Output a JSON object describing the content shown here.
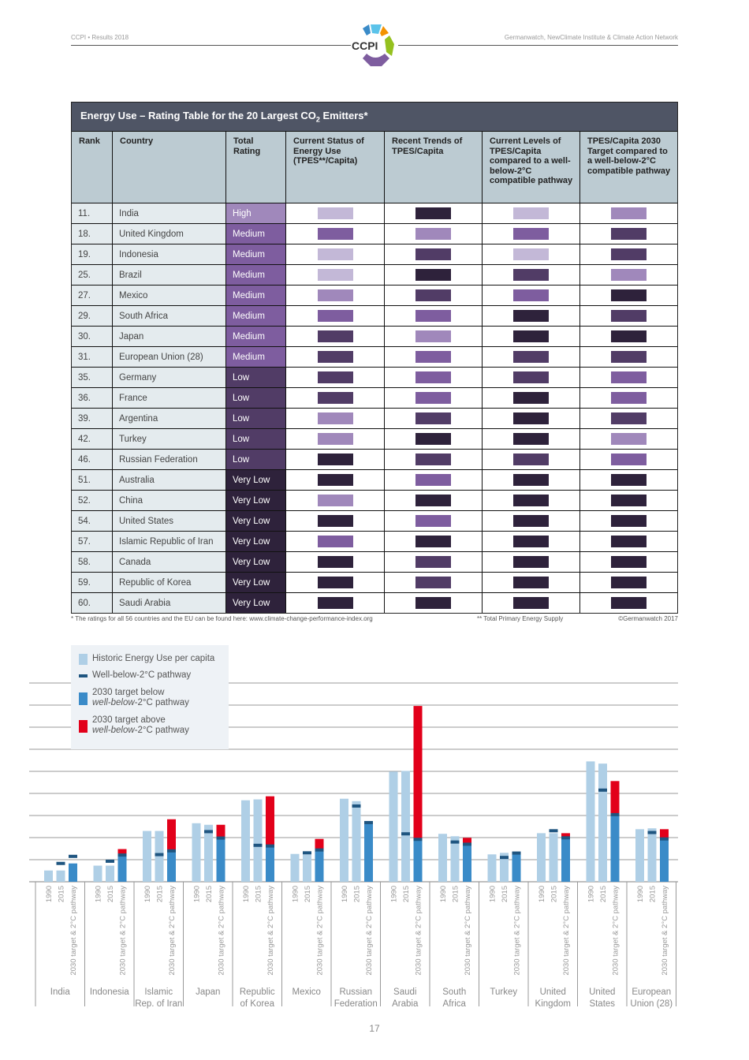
{
  "header": {
    "left": "CCPI • Results 2018",
    "right": "Germanwatch, NewClimate Institute & Climate Action Network",
    "logo_text": "CCPI"
  },
  "table": {
    "title": "Energy Use – Rating Table for the 20 Largest CO",
    "title_sub": "2",
    "title_end": " Emitters*",
    "columns": [
      "Rank",
      "Country",
      "Total Rating",
      "Current Status of Energy Use (TPES**/Capita)",
      "Recent Trends of TPES/Capita",
      "Current Levels of TPES/Capita compared to a well-below-2°C compatible pathway",
      "TPES/Capita 2030 Target compared to a well-below-2°C compatible pathway"
    ],
    "level_colors": {
      "Very High": "#c3b8d7",
      "High": "#a088bb",
      "Medium": "#7e5d9f",
      "Low": "#513c66",
      "Very Low": "#2e223b"
    },
    "rows": [
      {
        "rank": "11.",
        "country": "India",
        "rating": "High",
        "levels": [
          "Very High",
          "Very Low",
          "Very High",
          "High"
        ]
      },
      {
        "rank": "18.",
        "country": "United Kingdom",
        "rating": "Medium",
        "levels": [
          "Medium",
          "High",
          "Medium",
          "Low"
        ]
      },
      {
        "rank": "19.",
        "country": "Indonesia",
        "rating": "Medium",
        "levels": [
          "Very High",
          "Low",
          "Very High",
          "Low"
        ]
      },
      {
        "rank": "25.",
        "country": "Brazil",
        "rating": "Medium",
        "levels": [
          "Very High",
          "Very Low",
          "Low",
          "High"
        ]
      },
      {
        "rank": "27.",
        "country": "Mexico",
        "rating": "Medium",
        "levels": [
          "High",
          "Low",
          "Medium",
          "Very Low"
        ]
      },
      {
        "rank": "29.",
        "country": "South Africa",
        "rating": "Medium",
        "levels": [
          "Medium",
          "Medium",
          "Very Low",
          "Low"
        ]
      },
      {
        "rank": "30.",
        "country": "Japan",
        "rating": "Medium",
        "levels": [
          "Low",
          "High",
          "Very Low",
          "Very Low"
        ]
      },
      {
        "rank": "31.",
        "country": "European Union (28)",
        "rating": "Medium",
        "levels": [
          "Low",
          "Medium",
          "Low",
          "Low"
        ]
      },
      {
        "rank": "35.",
        "country": "Germany",
        "rating": "Low",
        "levels": [
          "Low",
          "Medium",
          "Low",
          "Medium"
        ]
      },
      {
        "rank": "36.",
        "country": "France",
        "rating": "Low",
        "levels": [
          "Low",
          "Medium",
          "Very Low",
          "Medium"
        ]
      },
      {
        "rank": "39.",
        "country": "Argentina",
        "rating": "Low",
        "levels": [
          "High",
          "Low",
          "Very Low",
          "Low"
        ]
      },
      {
        "rank": "42.",
        "country": "Turkey",
        "rating": "Low",
        "levels": [
          "High",
          "Very Low",
          "Very Low",
          "High"
        ]
      },
      {
        "rank": "46.",
        "country": "Russian Federation",
        "rating": "Low",
        "levels": [
          "Very Low",
          "Low",
          "Low",
          "Medium"
        ]
      },
      {
        "rank": "51.",
        "country": "Australia",
        "rating": "Very Low",
        "levels": [
          "Very Low",
          "Medium",
          "Very Low",
          "Very Low"
        ]
      },
      {
        "rank": "52.",
        "country": "China",
        "rating": "Very Low",
        "levels": [
          "High",
          "Very Low",
          "Very Low",
          "Very Low"
        ]
      },
      {
        "rank": "54.",
        "country": "United States",
        "rating": "Very Low",
        "levels": [
          "Very Low",
          "Medium",
          "Very Low",
          "Very Low"
        ]
      },
      {
        "rank": "57.",
        "country": "Islamic Republic of Iran",
        "rating": "Very Low",
        "levels": [
          "Medium",
          "Very Low",
          "Very Low",
          "Very Low"
        ]
      },
      {
        "rank": "58.",
        "country": "Canada",
        "rating": "Very Low",
        "levels": [
          "Very Low",
          "Low",
          "Very Low",
          "Very Low"
        ]
      },
      {
        "rank": "59.",
        "country": "Republic of Korea",
        "rating": "Very Low",
        "levels": [
          "Very Low",
          "Low",
          "Very Low",
          "Very Low"
        ]
      },
      {
        "rank": "60.",
        "country": "Saudi Arabia",
        "rating": "Very Low",
        "levels": [
          "Very Low",
          "Very Low",
          "Very Low",
          "Very Low"
        ]
      }
    ],
    "footnote1": "* The ratings for all 56 countries and the EU can be found here: www.climate-change-performance-index.org",
    "footnote2": "** Total Primary Energy Supply",
    "copyright": "©Germanwatch 2017"
  },
  "chart_data": {
    "type": "bar",
    "legend": [
      {
        "label": "Historic Energy Use per capita",
        "color": "#afcfe6"
      },
      {
        "label": "Well-below-2°C pathway",
        "color": "#1f5580"
      },
      {
        "label": "2030 target below",
        "label_em": "well-below",
        "label_end": "-2°C pathway",
        "color": "#3a8bc8"
      },
      {
        "label": "2030 target above",
        "label_em": "well-below",
        "label_end": "-2°C pathway",
        "color": "#e2001a"
      }
    ],
    "bar_labels": [
      "1990",
      "2015",
      "2030 target & 2°C pathway"
    ],
    "grid": true,
    "ylim": [
      0,
      9
    ],
    "countries": [
      {
        "name": "India",
        "y1990": 0.51,
        "y2015": 0.51,
        "pathway2015": 0.83,
        "target2030": 0.83,
        "pathway2030": 1.15
      },
      {
        "name": "Indonesia",
        "y1990": 0.73,
        "y2015": 0.73,
        "pathway2015": 0.93,
        "target2030": 1.48,
        "pathway2030": 1.21
      },
      {
        "name": "Islamic Rep. of Iran",
        "y1990": 2.3,
        "y2015": 2.3,
        "pathway2015": 1.23,
        "target2030": 2.83,
        "pathway2030": 1.4
      },
      {
        "name": "Japan",
        "y1990": 2.65,
        "y2015": 2.58,
        "pathway2015": 2.27,
        "target2030": 2.58,
        "pathway2030": 1.98
      },
      {
        "name": "Republic of Korea",
        "y1990": 3.69,
        "y2015": 3.73,
        "pathway2015": 1.65,
        "target2030": 3.87,
        "pathway2030": 1.62
      },
      {
        "name": "Mexico",
        "y1990": 1.26,
        "y2015": 1.23,
        "pathway2015": 1.31,
        "target2030": 1.94,
        "pathway2030": 1.44
      },
      {
        "name": "Russian Federation",
        "y1990": 3.76,
        "y2015": 3.65,
        "pathway2015": 3.43,
        "target2030": 2.62,
        "pathway2030": 2.68
      },
      {
        "name": "Saudi Arabia",
        "y1990": 4.99,
        "y2015": 5.02,
        "pathway2015": 2.17,
        "target2030": 7.96,
        "pathway2030": 1.92
      },
      {
        "name": "South Africa",
        "y1990": 2.17,
        "y2015": 2.06,
        "pathway2015": 1.8,
        "target2030": 1.99,
        "pathway2030": 1.7
      },
      {
        "name": "Turkey",
        "y1990": 1.24,
        "y2015": 1.31,
        "pathway2015": 1.1,
        "target2030": 1.24,
        "pathway2030": 1.3
      },
      {
        "name": "United Kingdom",
        "y1990": 2.2,
        "y2015": 2.2,
        "pathway2015": 2.31,
        "target2030": 2.2,
        "pathway2030": 1.99
      },
      {
        "name": "United States",
        "y1990": 5.45,
        "y2015": 5.35,
        "pathway2015": 4.15,
        "target2030": 4.56,
        "pathway2030": 3.04
      },
      {
        "name": "European Union (28)",
        "y1990": 2.38,
        "y2015": 2.42,
        "pathway2015": 2.23,
        "target2030": 2.38,
        "pathway2030": 1.94
      }
    ]
  },
  "page_number": "17"
}
